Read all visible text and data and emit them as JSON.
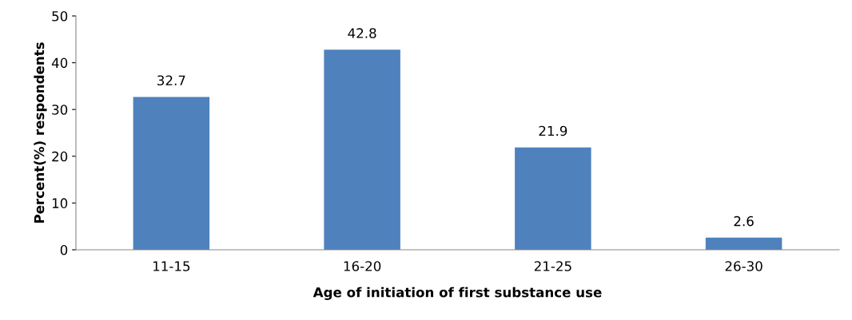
{
  "chart_data": {
    "type": "bar",
    "xlabel": "Age of initiation of first substance use",
    "ylabel": "Percent(%) respondents",
    "categories": [
      "11-15",
      "16-20",
      "21-25",
      "26-30"
    ],
    "values": [
      32.7,
      42.8,
      21.9,
      2.6
    ],
    "color": "#4f81bd",
    "ylim": [
      0,
      50
    ],
    "yticks": [
      0,
      10,
      20,
      30,
      40,
      50
    ],
    "grid": false,
    "data_labels": true
  }
}
